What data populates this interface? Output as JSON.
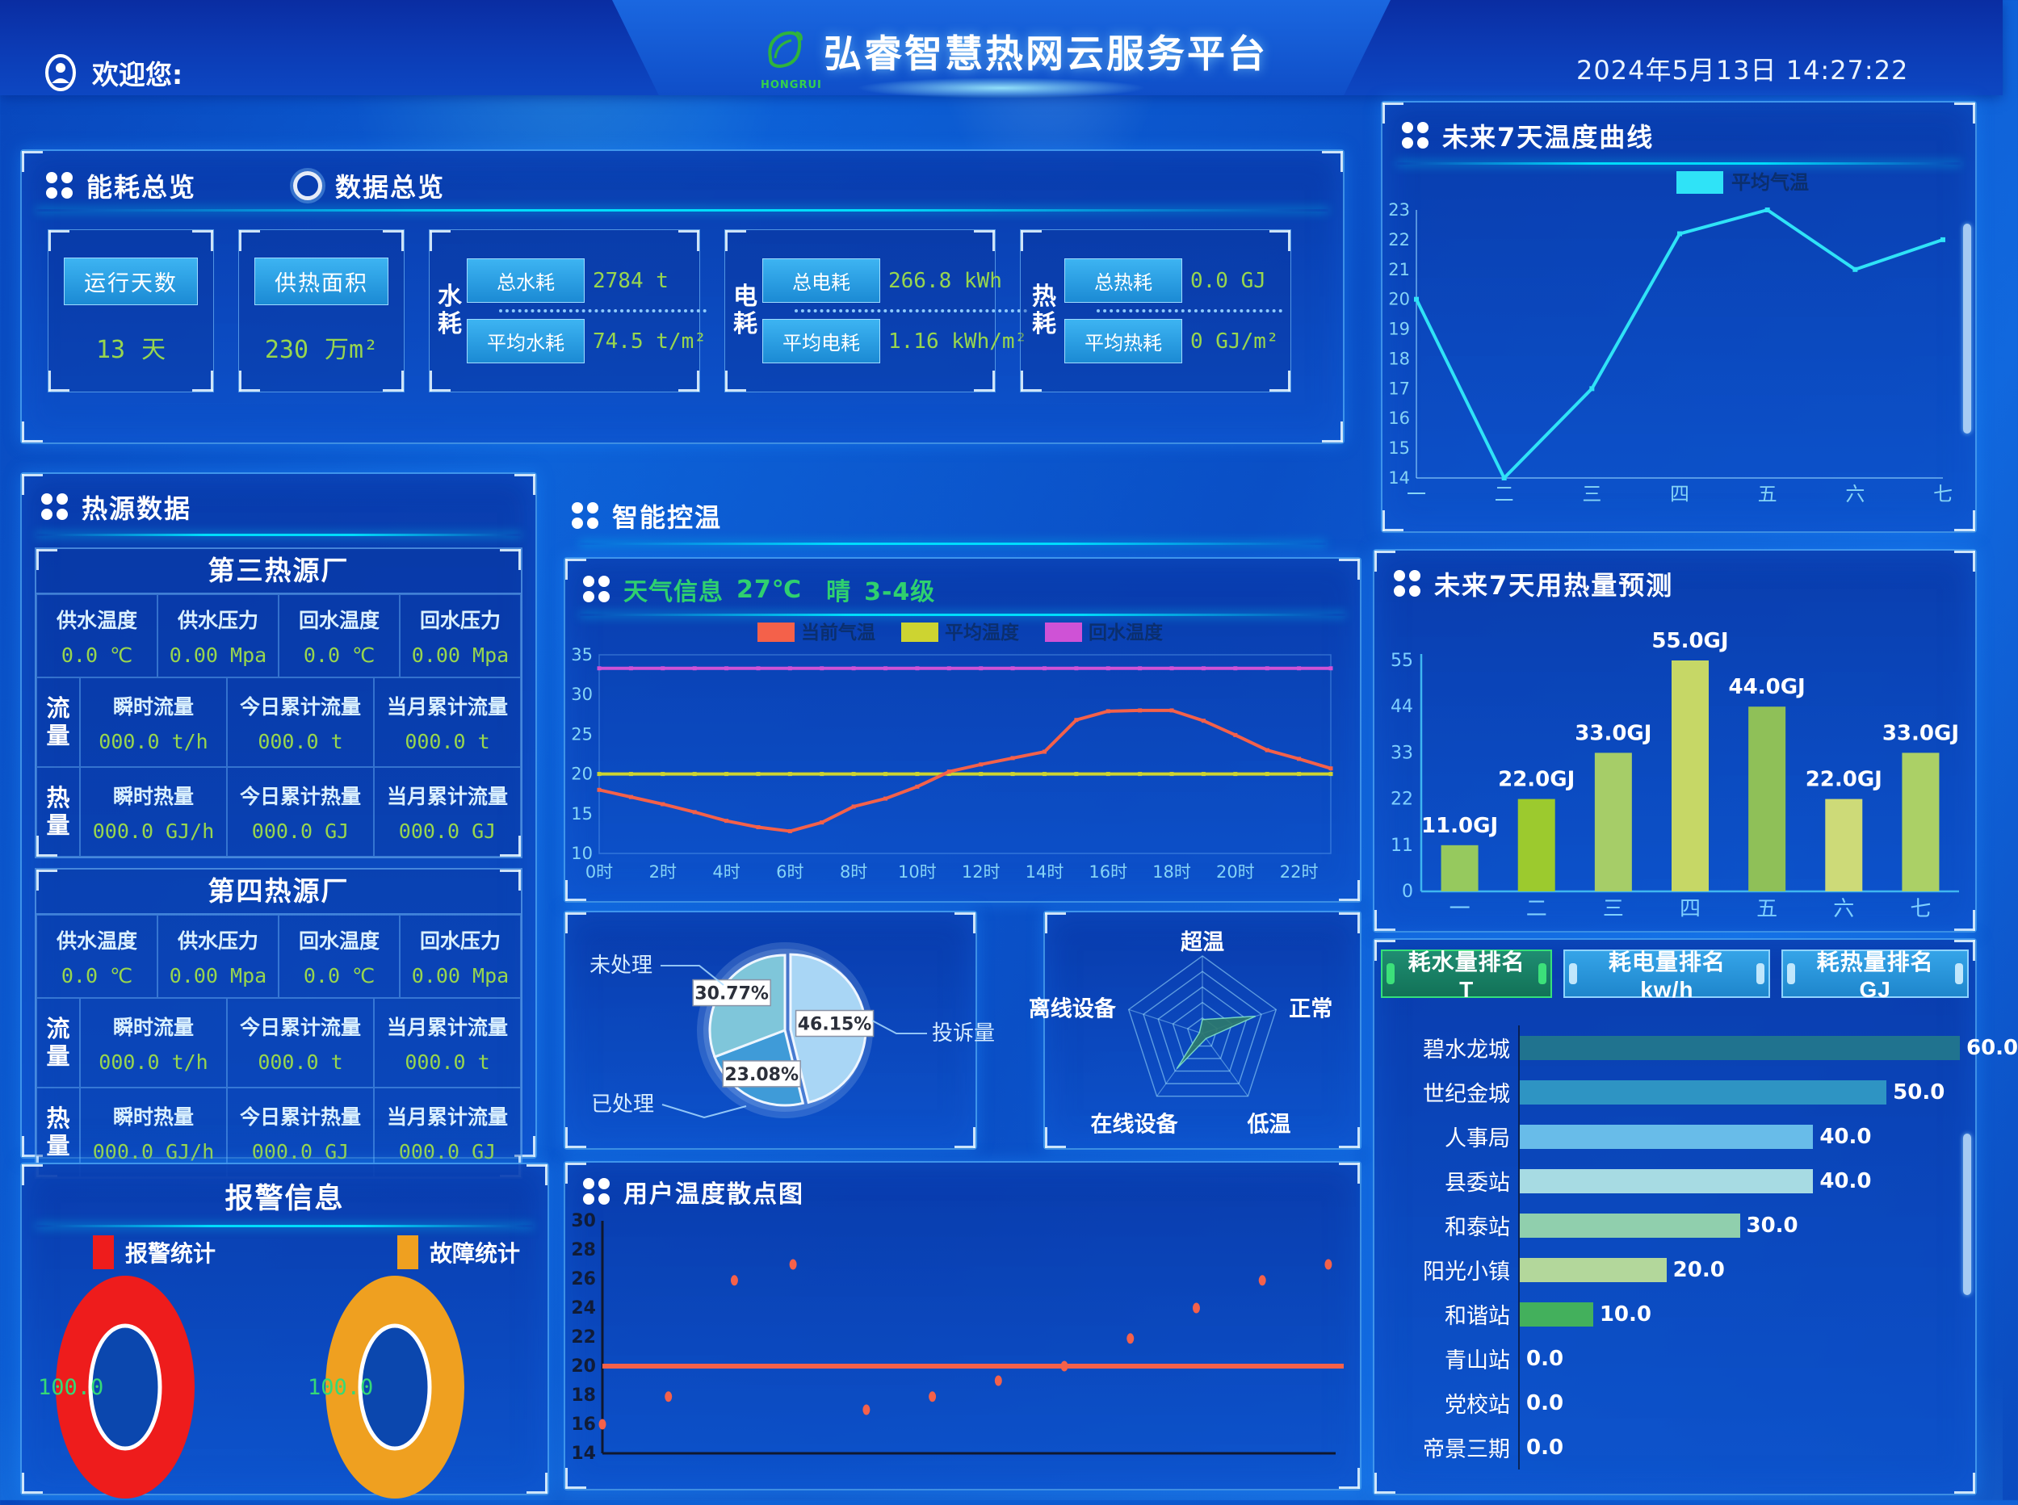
{
  "header": {
    "welcome_label": "欢迎您:",
    "title": "弘睿智慧热网云服务平台",
    "logo_text": "HONGRUI",
    "datetime": "2024年5月13日  14:27:22"
  },
  "overview_panel": {
    "tabs": [
      {
        "label": "能耗总览"
      },
      {
        "label": "数据总览"
      }
    ],
    "simple_cards": [
      {
        "label": "运行天数",
        "value": "13",
        "unit": "天"
      },
      {
        "label": "供热面积",
        "value": "230",
        "unit": "万m²"
      }
    ],
    "grouped_cards": [
      {
        "group_label": "水耗",
        "items": [
          {
            "label": "总水耗",
            "value": "2784",
            "unit": "t"
          },
          {
            "label": "平均水耗",
            "value": "74.5",
            "unit": "t/m²"
          }
        ]
      },
      {
        "group_label": "电耗",
        "items": [
          {
            "label": "总电耗",
            "value": "266.8",
            "unit": "kWh"
          },
          {
            "label": "平均电耗",
            "value": "1.16",
            "unit": "kWh/m²"
          }
        ]
      },
      {
        "group_label": "热耗",
        "items": [
          {
            "label": "总热耗",
            "value": "0.0",
            "unit": "GJ"
          },
          {
            "label": "平均热耗",
            "value": "0",
            "unit": "GJ/m²"
          }
        ]
      }
    ]
  },
  "heat_source_panel": {
    "title": "热源数据",
    "plants": [
      {
        "name": "第三热源厂",
        "params": [
          {
            "label": "供水温度",
            "value": "0.0",
            "unit": "℃"
          },
          {
            "label": "供水压力",
            "value": "0.00",
            "unit": "Mpa"
          },
          {
            "label": "回水温度",
            "value": "0.0",
            "unit": "℃"
          },
          {
            "label": "回水压力",
            "value": "0.00",
            "unit": "Mpa"
          }
        ],
        "rows": [
          {
            "group": "流量",
            "cells": [
              {
                "label": "瞬时流量",
                "value": "000.0",
                "unit": "t/h"
              },
              {
                "label": "今日累计流量",
                "value": "000.0",
                "unit": "t"
              },
              {
                "label": "当月累计流量",
                "value": "000.0",
                "unit": "t"
              }
            ]
          },
          {
            "group": "热量",
            "cells": [
              {
                "label": "瞬时热量",
                "value": "000.0",
                "unit": "GJ/h"
              },
              {
                "label": "今日累计热量",
                "value": "000.0",
                "unit": "GJ"
              },
              {
                "label": "当月累计流量",
                "value": "000.0",
                "unit": "GJ"
              }
            ]
          }
        ]
      },
      {
        "name": "第四热源厂",
        "params": [
          {
            "label": "供水温度",
            "value": "0.0",
            "unit": "℃"
          },
          {
            "label": "供水压力",
            "value": "0.00",
            "unit": "Mpa"
          },
          {
            "label": "回水温度",
            "value": "0.0",
            "unit": "℃"
          },
          {
            "label": "回水压力",
            "value": "0.00",
            "unit": "Mpa"
          }
        ],
        "rows": [
          {
            "group": "流量",
            "cells": [
              {
                "label": "瞬时流量",
                "value": "000.0",
                "unit": "t/h"
              },
              {
                "label": "今日累计流量",
                "value": "000.0",
                "unit": "t"
              },
              {
                "label": "当月累计流量",
                "value": "000.0",
                "unit": "t"
              }
            ]
          },
          {
            "group": "热量",
            "cells": [
              {
                "label": "瞬时热量",
                "value": "000.0",
                "unit": "GJ/h"
              },
              {
                "label": "今日累计热量",
                "value": "000.0",
                "unit": "GJ"
              },
              {
                "label": "当月累计流量",
                "value": "000.0",
                "unit": "GJ"
              }
            ]
          }
        ]
      }
    ]
  },
  "smart_control": {
    "title": "智能控温",
    "weather_bar": {
      "label": "天气信息",
      "temperature": "27℃",
      "condition": "晴",
      "wind": "3-4级"
    }
  },
  "ranking_tabs": [
    {
      "label": "耗水量排名 T",
      "active": true
    },
    {
      "label": "耗电量排名 kw/h",
      "active": false
    },
    {
      "label": "耗热量排名 GJ",
      "active": false
    }
  ],
  "alarm_panel": {
    "title": "报警信息",
    "legend": [
      {
        "label": "报警统计",
        "color": "#ee1c1c"
      },
      {
        "label": "故障统计",
        "color": "#efa020"
      }
    ],
    "donuts": [
      {
        "value": "100.0",
        "color": "#ee1c1c"
      },
      {
        "value": "100.0",
        "color": "#efa020"
      }
    ]
  },
  "chart_data": [
    {
      "id": "temp7",
      "type": "line",
      "title": "未来7天温度曲线",
      "legend": [
        {
          "label": "平均气温",
          "color": "#2fe3f7"
        }
      ],
      "categories": [
        "一",
        "二",
        "三",
        "四",
        "五",
        "六",
        "七"
      ],
      "values": [
        20,
        14,
        17,
        22.2,
        23,
        21,
        22
      ],
      "ylim": [
        14,
        23
      ],
      "ytick_step": 1,
      "line_color": "#2fe3f7"
    },
    {
      "id": "weather",
      "type": "line",
      "x_tick_labels": [
        "0时",
        "2时",
        "4时",
        "6时",
        "8时",
        "10时",
        "12时",
        "14时",
        "16时",
        "18时",
        "20时",
        "22时"
      ],
      "ylim": [
        10,
        35
      ],
      "ytick_step": 5,
      "series": [
        {
          "name": "当前气温",
          "color": "#f4614a",
          "values": [
            18,
            17.1,
            16.2,
            15.2,
            14.1,
            13.3,
            12.8,
            13.9,
            15.9,
            16.9,
            18.4,
            20.3,
            21.2,
            22,
            22.8,
            26.8,
            27.9,
            28,
            28,
            26.7,
            24.9,
            23,
            21.9,
            20.7
          ]
        },
        {
          "name": "平均温度",
          "color": "#cdd431",
          "values": [
            20,
            20,
            20,
            20,
            20,
            20,
            20,
            20,
            20,
            20,
            20,
            20,
            20,
            20,
            20,
            20,
            20,
            20,
            20,
            20,
            20,
            20,
            20,
            20
          ]
        },
        {
          "name": "回水温度",
          "color": "#cf52d6",
          "values": [
            33.3,
            33.3,
            33.3,
            33.3,
            33.3,
            33.3,
            33.3,
            33.3,
            33.3,
            33.3,
            33.3,
            33.3,
            33.3,
            33.3,
            33.3,
            33.3,
            33.3,
            33.3,
            33.3,
            33.3,
            33.3,
            33.3,
            33.3,
            33.3
          ]
        }
      ]
    },
    {
      "id": "complaints",
      "type": "pie",
      "slices": [
        {
          "label": "投诉量",
          "pct_label": "46.15%",
          "value": 46.15,
          "color": "#a9d6f5"
        },
        {
          "label": "已处理",
          "pct_label": "23.08%",
          "value": 23.08,
          "color": "#3f9bd8"
        },
        {
          "label": "未处理",
          "pct_label": "30.77%",
          "value": 30.77,
          "color": "#7fc6da"
        }
      ]
    },
    {
      "id": "devices",
      "type": "radar",
      "axes": [
        "超温",
        "正常",
        "低温",
        "在线设备",
        "离线设备"
      ],
      "values": [
        18,
        72,
        8,
        56,
        4
      ],
      "max": 100,
      "fill_color": "rgba(45,120,108,0.92)"
    },
    {
      "id": "user_temp",
      "type": "scatter",
      "title": "用户温度散点图",
      "ylim": [
        14,
        30
      ],
      "ytick_step": 2,
      "refline": 20,
      "point_color": "#f4614a",
      "points_x": [
        0,
        0.09,
        0.18,
        0.26,
        0.36,
        0.45,
        0.54,
        0.63,
        0.72,
        0.81,
        0.9,
        0.99
      ],
      "points_y": [
        16,
        17.9,
        25.9,
        27,
        17,
        17.9,
        19,
        20,
        21.9,
        24,
        25.9,
        27
      ]
    },
    {
      "id": "heat7",
      "type": "bar",
      "title": "未来7天用热量预测",
      "categories": [
        "一",
        "二",
        "三",
        "四",
        "五",
        "六",
        "七"
      ],
      "values": [
        11,
        22,
        33,
        55,
        44,
        22,
        33
      ],
      "value_labels": [
        "11.0GJ",
        "22.0GJ",
        "33.0GJ",
        "55.0GJ",
        "44.0GJ",
        "22.0GJ",
        "33.0GJ"
      ],
      "yticks": [
        0,
        11,
        22,
        33,
        44,
        55
      ],
      "bar_colors": [
        "#96c95e",
        "#9cca2e",
        "#a6cd68",
        "#c6d766",
        "#8fc058",
        "#cdda78",
        "#abd066"
      ]
    },
    {
      "id": "ranking",
      "type": "hbar",
      "max": 60,
      "categories": [
        "碧水龙城",
        "世纪金城",
        "人事局",
        "县委站",
        "和泰站",
        "阳光小镇",
        "和谐站",
        "青山站",
        "党校站",
        "帝景三期"
      ],
      "values": [
        60,
        50,
        40,
        40,
        30,
        20,
        10,
        0,
        0,
        0
      ],
      "value_labels": [
        "60.0",
        "50.0",
        "40.0",
        "40.0",
        "30.0",
        "20.0",
        "10.0",
        "0.0",
        "0.0",
        "0.0"
      ],
      "bar_colors": [
        "#20738f",
        "#2e94c3",
        "#68bce9",
        "#a7dbe3",
        "#90cfad",
        "#b3d79b",
        "#43b05c",
        "#43b05c",
        "#43b05c",
        "#43b05c"
      ]
    }
  ]
}
